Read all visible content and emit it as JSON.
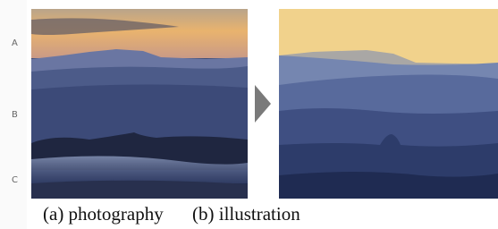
{
  "labels": {
    "a": "A",
    "b": "B",
    "c": "C"
  },
  "caption": {
    "left": "(a) photography",
    "right": "(b) illustration"
  }
}
